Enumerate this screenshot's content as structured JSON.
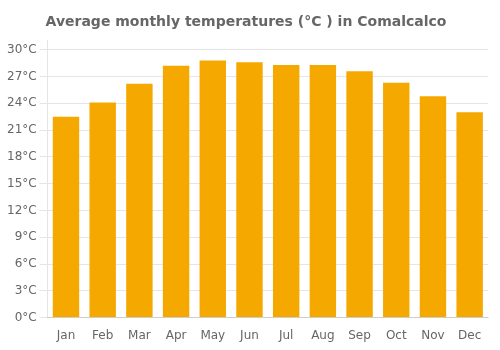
{
  "chart_data": {
    "type": "bar",
    "title": "Average monthly temperatures (°C ) in Comalcalco",
    "categories": [
      "Jan",
      "Feb",
      "Mar",
      "Apr",
      "May",
      "Jun",
      "Jul",
      "Aug",
      "Sep",
      "Oct",
      "Nov",
      "Dec"
    ],
    "values": [
      22.5,
      24.1,
      26.2,
      28.2,
      28.8,
      28.6,
      28.3,
      28.3,
      27.6,
      26.3,
      24.8,
      23.0
    ],
    "color": "#F5A800",
    "ylim": [
      0,
      31
    ],
    "yticks": [
      {
        "value": 0,
        "label": "0°C"
      },
      {
        "value": 3,
        "label": "3°C"
      },
      {
        "value": 6,
        "label": "6°C"
      },
      {
        "value": 9,
        "label": "9°C"
      },
      {
        "value": 12,
        "label": "12°C"
      },
      {
        "value": 15,
        "label": "15°C"
      },
      {
        "value": 18,
        "label": "18°C"
      },
      {
        "value": 21,
        "label": "21°C"
      },
      {
        "value": 24,
        "label": "24°C"
      },
      {
        "value": 27,
        "label": "27°C"
      },
      {
        "value": 30,
        "label": "30°C"
      }
    ],
    "grid": true
  }
}
